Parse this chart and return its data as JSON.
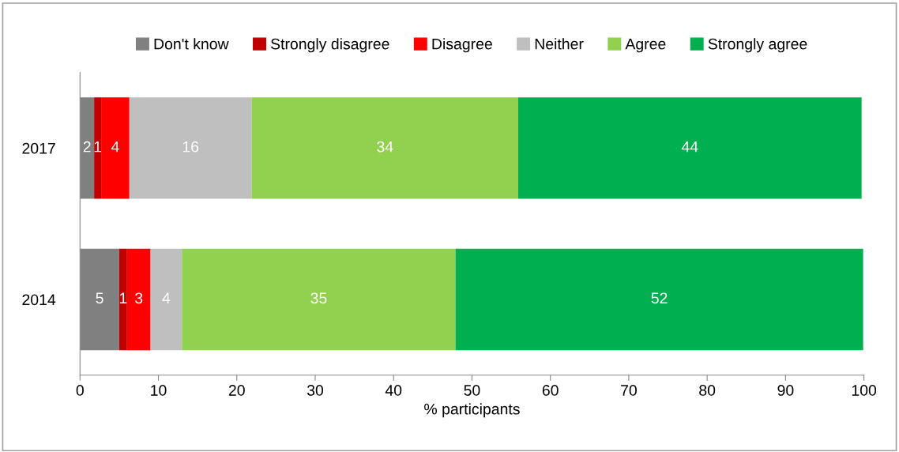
{
  "chart_data": {
    "type": "bar",
    "orientation": "horizontal",
    "stacked": true,
    "categories": [
      "2017",
      "2014"
    ],
    "series": [
      {
        "name": "Don't know",
        "color": "#808080",
        "values": [
          1.8,
          5.0
        ],
        "value_labels": [
          "2",
          "5"
        ]
      },
      {
        "name": "Strongly disagree",
        "color": "#c00000",
        "values": [
          0.9,
          1.0
        ],
        "value_labels": [
          "1",
          "1"
        ]
      },
      {
        "name": "Disagree",
        "color": "#ff0000",
        "values": [
          3.6,
          3.0
        ],
        "value_labels": [
          "4",
          "3"
        ]
      },
      {
        "name": "Neither",
        "color": "#bfbfbf",
        "values": [
          15.6,
          4.0
        ],
        "value_labels": [
          "16",
          "4"
        ]
      },
      {
        "name": "Agree",
        "color": "#92d050",
        "values": [
          34.0,
          34.9
        ],
        "value_labels": [
          "34",
          "35"
        ]
      },
      {
        "name": "Strongly agree",
        "color": "#00b050",
        "values": [
          43.8,
          52.0
        ],
        "value_labels": [
          "44",
          "52"
        ]
      }
    ],
    "xlim": [
      0,
      100
    ],
    "xticks": [
      0,
      10,
      20,
      30,
      40,
      50,
      60,
      70,
      80,
      90,
      100
    ],
    "xlabel": "% participants",
    "legend": "top",
    "grid": false
  }
}
